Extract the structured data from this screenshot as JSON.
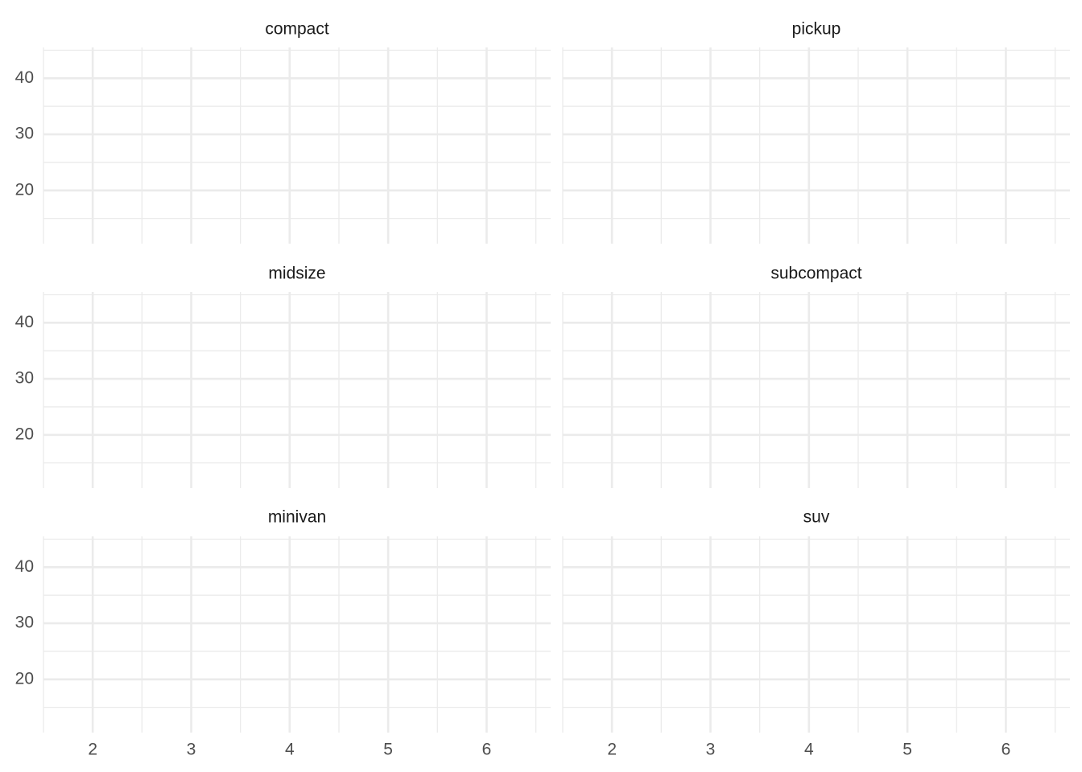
{
  "chart_data": {
    "type": "scatter",
    "facets": [
      "compact",
      "pickup",
      "midsize",
      "subcompact",
      "minivan",
      "suv"
    ],
    "ncol": 2,
    "x_ticks": [
      2,
      3,
      4,
      5,
      6
    ],
    "x_tick_labels": [
      "2",
      "3",
      "4",
      "5",
      "6"
    ],
    "y_ticks": [
      20,
      30,
      40
    ],
    "y_tick_labels": [
      "20",
      "30",
      "40"
    ],
    "xlim": [
      1.5,
      6.65
    ],
    "ylim": [
      10.5,
      45.5
    ],
    "points": [],
    "grid": true,
    "colors": {
      "background": "#ffffff",
      "grid": "#ebebeb",
      "tick_text": "#4d4d4d",
      "strip_text": "#1a1a1a"
    }
  }
}
